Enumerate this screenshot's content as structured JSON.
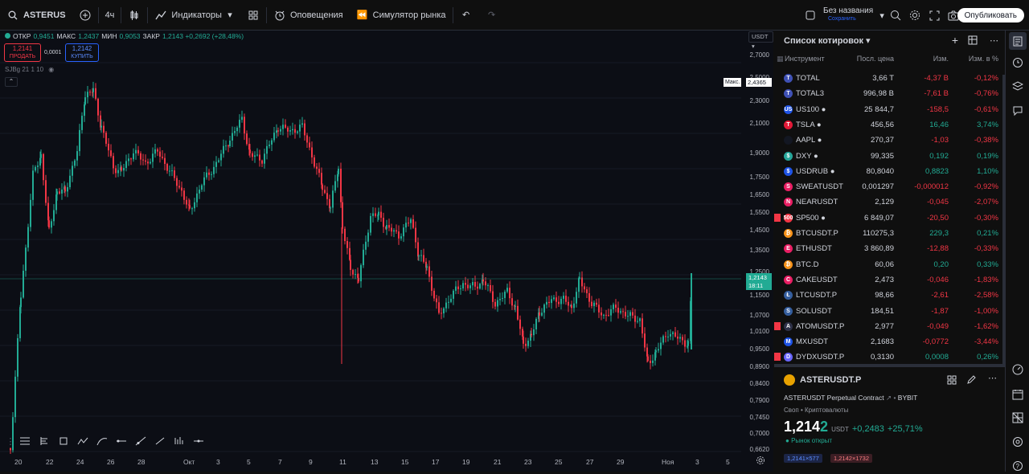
{
  "topbar": {
    "symbol": "ASTERUS",
    "interval": "4ч",
    "indicators": "Индикаторы",
    "alerts": "Оповещения",
    "replay": "Симулятор рынка",
    "layout_name": "Без названия",
    "layout_sub": "Сохранить",
    "publish": "Опубликовать"
  },
  "chart": {
    "ohlc_open_label": "ОТКР",
    "ohlc_open": "0,9451",
    "ohlc_high_label": "МАКС",
    "ohlc_high": "1,2437",
    "ohlc_low_label": "МИН",
    "ohlc_low": "0,9053",
    "ohlc_close_label": "ЗАКР",
    "ohlc_close": "1,2143 +0,2692 (+28,48%)",
    "sell_price": "1,2141",
    "sell_label": "ПРОДАТЬ",
    "spread": "0,0001",
    "buy_price": "1,2142",
    "buy_label": "КУПИТЬ",
    "indicator_line": "SJBg 21 1 10",
    "currency": "USDT",
    "max_label": "Макс.",
    "max_value": "2,4365",
    "last_price": "1,2143",
    "countdown": "18:11",
    "y_ticks": [
      "2,7000",
      "2,5000",
      "2,3000",
      "2,1000",
      "1,9000",
      "1,7500",
      "1,6500",
      "1,5500",
      "1,4500",
      "1,3500",
      "1,2500",
      "1,1500",
      "1,0700",
      "1,0100",
      "0,9500",
      "0,8900",
      "0,8400",
      "0,7900",
      "0,7450",
      "0,7000",
      "0,6620"
    ],
    "x_ticks": [
      "20",
      "22",
      "24",
      "26",
      "28",
      "Окт",
      "3",
      "5",
      "7",
      "9",
      "11",
      "13",
      "15",
      "17",
      "19",
      "21",
      "23",
      "25",
      "27",
      "29",
      "Ноя",
      "3",
      "5"
    ]
  },
  "watchlist": {
    "title": "Список котировок",
    "col_symbol": "Инструмент",
    "col_last": "Посл. цена",
    "col_chg": "Изм.",
    "col_chgp": "Изм. в %",
    "rows": [
      {
        "sym": "TOTAL",
        "last": "3,66 T",
        "chg": "-4,37 B",
        "chgp": "-0,12%",
        "icon": "#3f51b5",
        "ch": "T",
        "flag": false
      },
      {
        "sym": "TOTAL3",
        "last": "996,98 B",
        "chg": "-7,61 B",
        "chgp": "-0,76%",
        "icon": "#3f51b5",
        "ch": "T",
        "flag": false
      },
      {
        "sym": "US100 ●",
        "last": "25 844,7",
        "chg": "-158,5",
        "chgp": "-0,61%",
        "icon": "#1e53e5",
        "ch": "US",
        "flag": false
      },
      {
        "sym": "TSLA ●",
        "last": "456,56",
        "chg": "16,46",
        "chgp": "3,74%",
        "icon": "#e31937",
        "ch": "T",
        "flag": false
      },
      {
        "sym": "AAPL ●",
        "last": "270,37",
        "chg": "-1,03",
        "chgp": "-0,38%",
        "icon": "#131722",
        "ch": "",
        "flag": false
      },
      {
        "sym": "DXY ●",
        "last": "99,335",
        "chg": "0,192",
        "chgp": "0,19%",
        "icon": "#26a69a",
        "ch": "$",
        "flag": false
      },
      {
        "sym": "USDRUB ●",
        "last": "80,8040",
        "chg": "0,8823",
        "chgp": "1,10%",
        "icon": "#1e53e5",
        "ch": "$",
        "flag": false
      },
      {
        "sym": "SWEATUSDT",
        "last": "0,001297",
        "chg": "-0,000012",
        "chgp": "-0,92%",
        "icon": "#e91e63",
        "ch": "S",
        "flag": false
      },
      {
        "sym": "NEARUSDT",
        "last": "2,129",
        "chg": "-0,045",
        "chgp": "-2,07%",
        "icon": "#e91e63",
        "ch": "N",
        "flag": false
      },
      {
        "sym": "SP500 ●",
        "last": "6 849,07",
        "chg": "-20,50",
        "chgp": "-0,30%",
        "icon": "#f23645",
        "ch": "500",
        "flag": true
      },
      {
        "sym": "BTCUSDT.P",
        "last": "110275,3",
        "chg": "229,3",
        "chgp": "0,21%",
        "icon": "#f7931a",
        "ch": "₿",
        "flag": false
      },
      {
        "sym": "ETHUSDT",
        "last": "3 860,89",
        "chg": "-12,88",
        "chgp": "-0,33%",
        "icon": "#e91e63",
        "ch": "E",
        "flag": false
      },
      {
        "sym": "BTC.D",
        "last": "60,06",
        "chg": "0,20",
        "chgp": "0,33%",
        "icon": "#f7931a",
        "ch": "₿",
        "flag": false
      },
      {
        "sym": "CAKEUSDT",
        "last": "2,473",
        "chg": "-0,046",
        "chgp": "-1,83%",
        "icon": "#e91e63",
        "ch": "C",
        "flag": false
      },
      {
        "sym": "LTCUSDT.P",
        "last": "98,66",
        "chg": "-2,61",
        "chgp": "-2,58%",
        "icon": "#345d9d",
        "ch": "Ł",
        "flag": false
      },
      {
        "sym": "SOLUSDT",
        "last": "184,51",
        "chg": "-1,87",
        "chgp": "-1,00%",
        "icon": "#345d9d",
        "ch": "S",
        "flag": false
      },
      {
        "sym": "ATOMUSDT.P",
        "last": "2,977",
        "chg": "-0,049",
        "chgp": "-1,62%",
        "icon": "#2e3148",
        "ch": "A",
        "flag": true
      },
      {
        "sym": "MXUSDT",
        "last": "2,1683",
        "chg": "-0,0772",
        "chgp": "-3,44%",
        "icon": "#1e53e5",
        "ch": "M",
        "flag": false
      },
      {
        "sym": "DYDXUSDT.P",
        "last": "0,3130",
        "chg": "0,0008",
        "chgp": "0,26%",
        "icon": "#6966ff",
        "ch": "D",
        "flag": true
      }
    ]
  },
  "details": {
    "symbol": "ASTERUSDT.P",
    "description": "ASTERUSDT Perpetual Contract",
    "exchange": "BYBIT",
    "type": "Своп • Криптовалюты",
    "price_main": "1,214",
    "price_last_digit": "2",
    "currency": "USDT",
    "change": "+0,2483",
    "change_pct": "+25,71%",
    "market_status": "Рынок открыт",
    "bid": "1,2141×577",
    "ask": "1,2142×1732"
  }
}
